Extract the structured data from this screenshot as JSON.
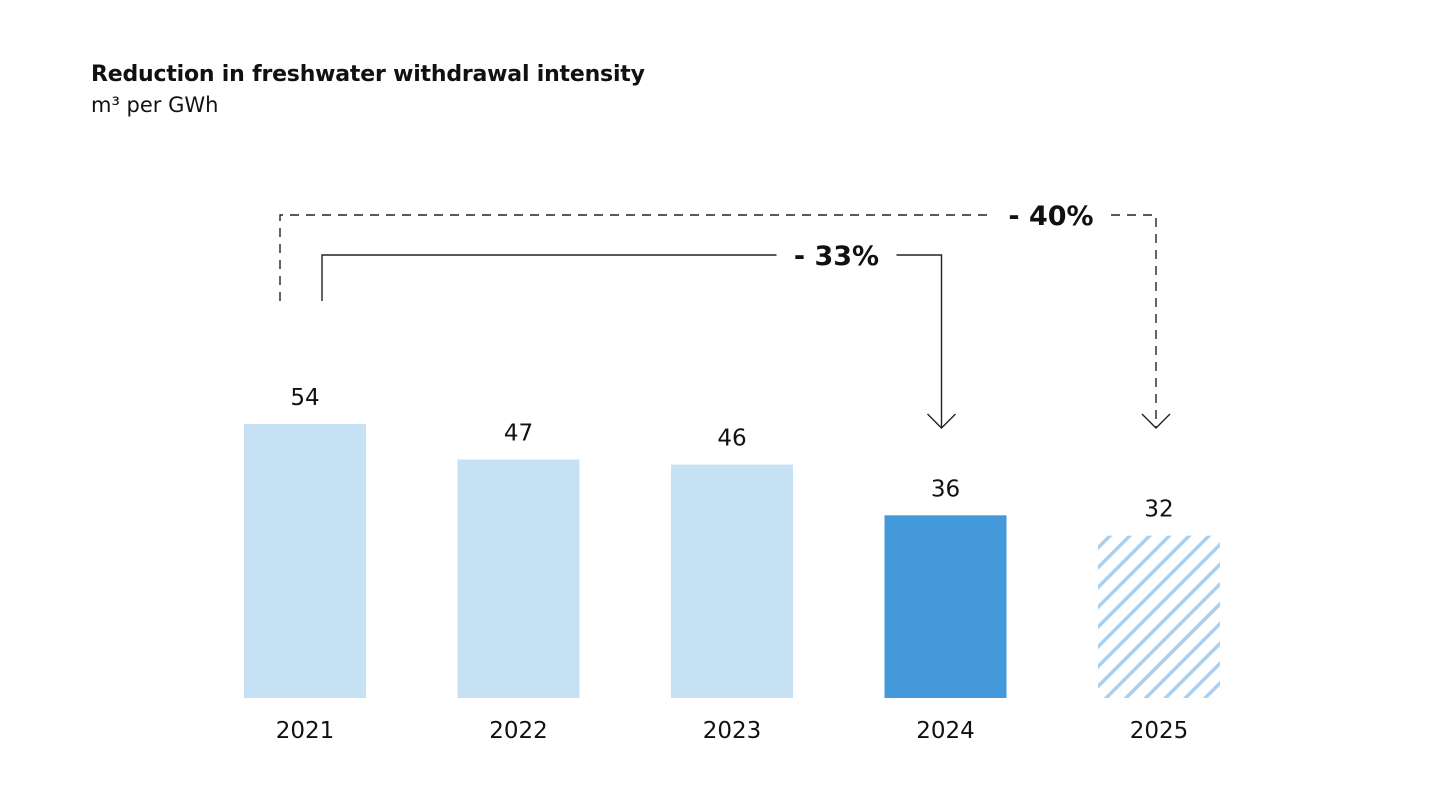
{
  "title": "Reduction in freshwater withdrawal intensity",
  "subtitle": "m³ per GWh",
  "chart_data": {
    "type": "bar",
    "title": "Reduction in freshwater withdrawal intensity",
    "subtitle": "m³ per GWh",
    "categories": [
      "2021",
      "2022",
      "2023",
      "2024",
      "2025"
    ],
    "values": [
      54,
      47,
      46,
      36,
      32
    ],
    "bar_styles": [
      "light",
      "light",
      "light",
      "highlight",
      "hatched"
    ],
    "colors": {
      "light": "#c6e1f4",
      "highlight": "#4399da",
      "hatch": "#a9d0ef",
      "line": "#222222",
      "text": "#111111"
    },
    "ylim": [
      0,
      54
    ],
    "grid": false,
    "annotations": [
      {
        "label": "- 33%",
        "from": "2021",
        "to": "2024",
        "style": "solid"
      },
      {
        "label": "- 40%",
        "from": "2021",
        "to": "2025",
        "style": "dashed"
      }
    ]
  }
}
